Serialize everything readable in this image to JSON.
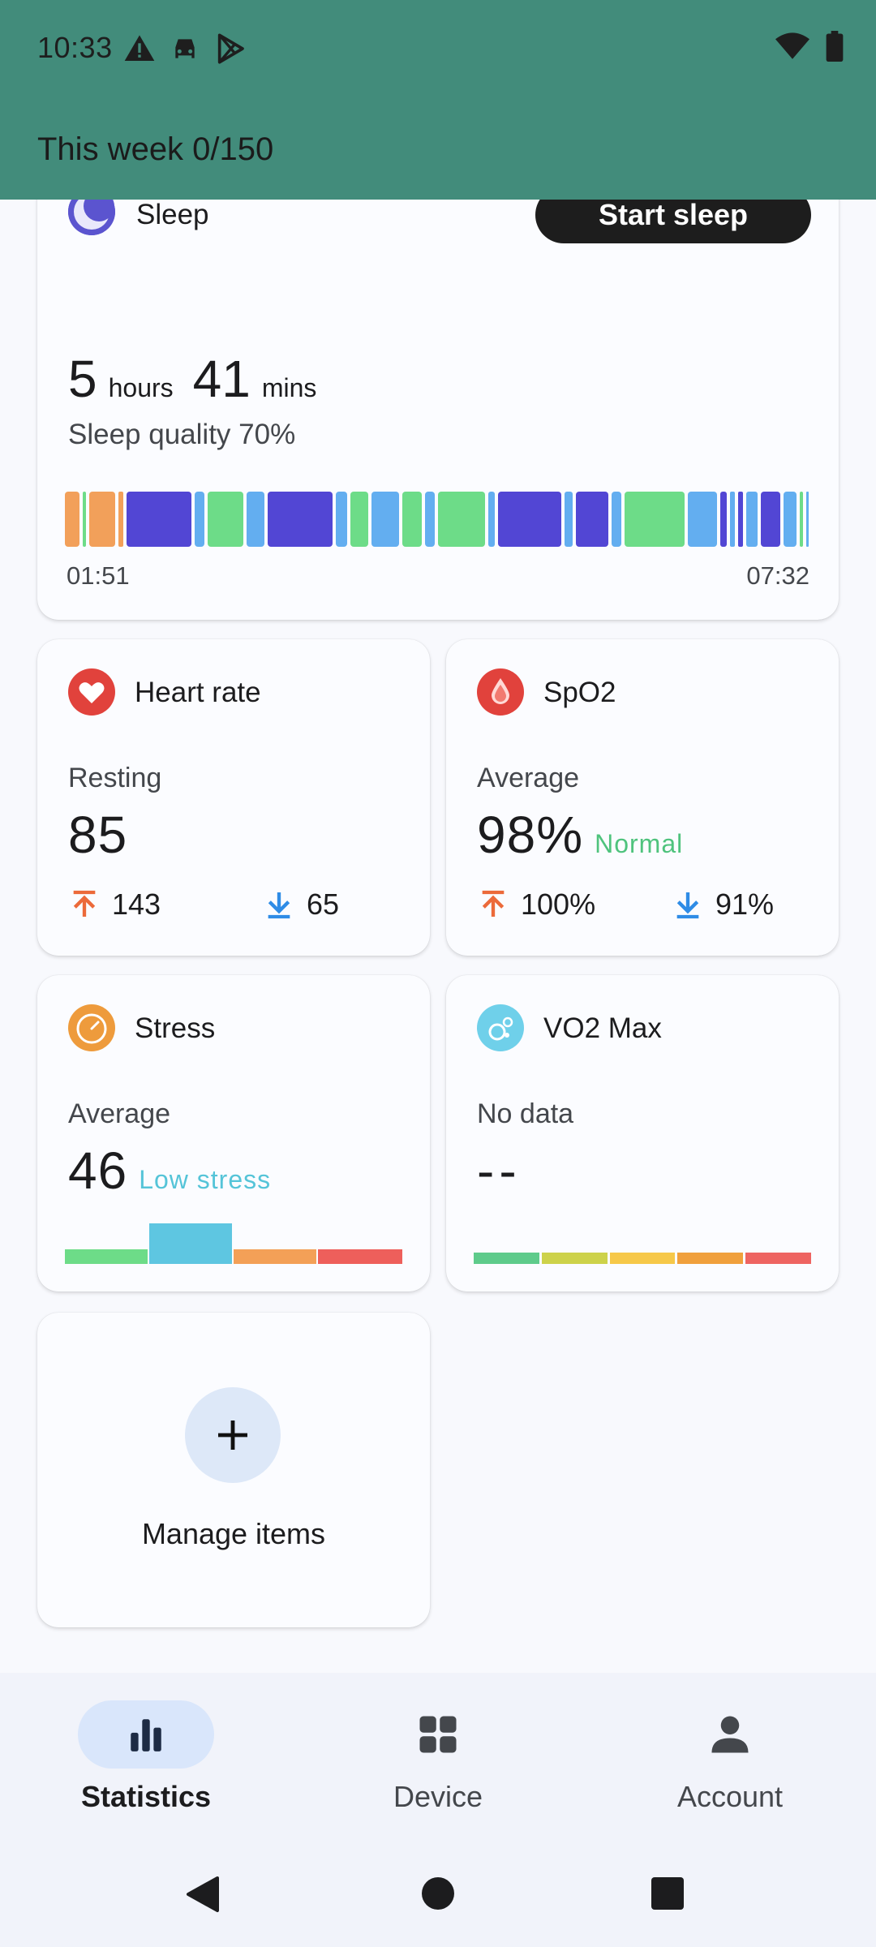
{
  "status_bar": {
    "time": "10:33",
    "left_icons": [
      "warning-icon",
      "car-icon",
      "play-store-icon"
    ],
    "right_icons": [
      "wifi-icon",
      "battery-icon"
    ]
  },
  "header": {
    "week_progress": "This week 0/150",
    "background_color": "#428c7b"
  },
  "sleep": {
    "title": "Sleep",
    "start_button": "Start sleep",
    "hours_value": "5",
    "hours_unit": "hours",
    "mins_value": "41",
    "mins_unit": "mins",
    "quality": "Sleep quality 70%",
    "start_time": "01:51",
    "end_time": "07:32",
    "stage_colors": {
      "awake": "#f2a05a",
      "rem": "#63ae f0",
      "light": "#6ddc88",
      "deep": "#5246d4"
    }
  },
  "heart_rate": {
    "title": "Heart rate",
    "label": "Resting",
    "value": "85",
    "max": "143",
    "min": "65"
  },
  "spo2": {
    "title": "SpO2",
    "label": "Average",
    "value": "98%",
    "status": "Normal",
    "max": "100%",
    "min": "91%"
  },
  "stress": {
    "title": "Stress",
    "label": "Average",
    "value": "46",
    "status": "Low stress",
    "levels": [
      "#6ddc88",
      "#5ec6e1",
      "#f3a057",
      "#ee5f5b"
    ],
    "active_level": 1
  },
  "vo2max": {
    "title": "VO2 Max",
    "label": "No data",
    "value": "--",
    "levels": [
      "#5ecb8b",
      "#cdd24a",
      "#f6c849",
      "#f0a03c",
      "#ee6461"
    ]
  },
  "manage": {
    "label": "Manage items"
  },
  "bottom_nav": {
    "items": [
      {
        "label": "Statistics",
        "icon": "bar-chart-icon",
        "active": true
      },
      {
        "label": "Device",
        "icon": "grid-icon",
        "active": false
      },
      {
        "label": "Account",
        "icon": "person-icon",
        "active": false
      }
    ]
  }
}
